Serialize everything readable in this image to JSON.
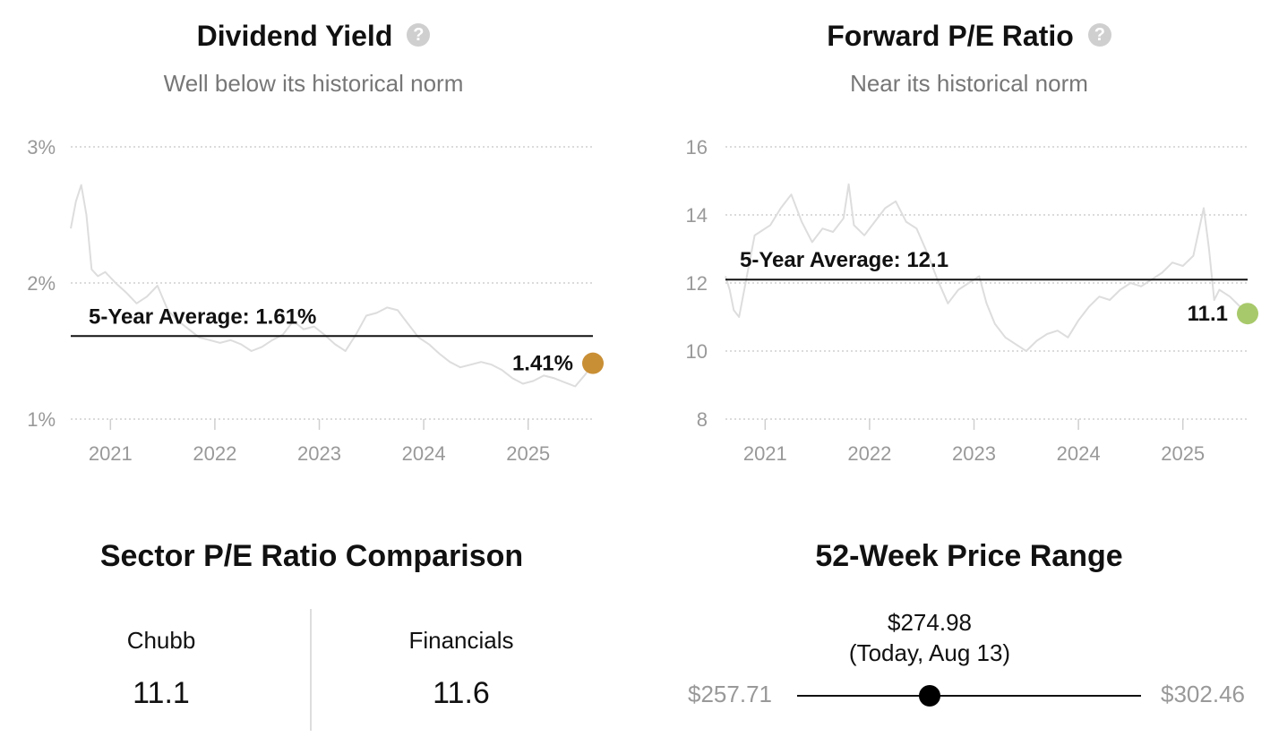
{
  "dividend_yield": {
    "title": "Dividend Yield",
    "subtitle": "Well below its historical norm",
    "help_icon": "question-circle-icon"
  },
  "forward_pe": {
    "title": "Forward P/E Ratio",
    "subtitle": "Near its historical norm",
    "help_icon": "question-circle-icon"
  },
  "chart_data": [
    {
      "id": "dividend_yield",
      "type": "line",
      "x_ticks": [
        "2021",
        "2022",
        "2023",
        "2024",
        "2025"
      ],
      "y_ticks": [
        "1%",
        "2%",
        "3%"
      ],
      "ylim": [
        1,
        3
      ],
      "xlim": [
        2020.62,
        2025.62
      ],
      "grid": "horizontal-dotted",
      "series_color": "#dddddd",
      "average": {
        "value": 1.61,
        "label": "5-Year Average: 1.61%"
      },
      "current": {
        "x": 2025.62,
        "value": 1.41,
        "label": "1.41%",
        "color": "#c98f35"
      },
      "series": [
        {
          "x": [
            2020.62,
            2020.67,
            2020.72,
            2020.77,
            2020.82,
            2020.88,
            2020.95,
            2021.05,
            2021.15,
            2021.25,
            2021.35,
            2021.45,
            2021.55,
            2021.65,
            2021.75,
            2021.85,
            2021.95,
            2022.05,
            2022.15,
            2022.25,
            2022.35,
            2022.45,
            2022.55,
            2022.65,
            2022.75,
            2022.85,
            2022.95,
            2023.05,
            2023.15,
            2023.25,
            2023.35,
            2023.45,
            2023.55,
            2023.65,
            2023.75,
            2023.85,
            2023.95,
            2024.05,
            2024.15,
            2024.25,
            2024.35,
            2024.45,
            2024.55,
            2024.65,
            2024.75,
            2024.85,
            2024.95,
            2025.05,
            2025.15,
            2025.25,
            2025.35,
            2025.45,
            2025.55,
            2025.62
          ],
          "y": [
            2.4,
            2.6,
            2.72,
            2.5,
            2.1,
            2.05,
            2.08,
            2.0,
            1.93,
            1.85,
            1.9,
            1.98,
            1.8,
            1.72,
            1.66,
            1.6,
            1.58,
            1.56,
            1.58,
            1.55,
            1.5,
            1.53,
            1.58,
            1.62,
            1.72,
            1.66,
            1.68,
            1.62,
            1.55,
            1.5,
            1.62,
            1.76,
            1.78,
            1.82,
            1.8,
            1.7,
            1.6,
            1.55,
            1.48,
            1.42,
            1.38,
            1.4,
            1.42,
            1.4,
            1.36,
            1.3,
            1.26,
            1.28,
            1.32,
            1.3,
            1.27,
            1.24,
            1.33,
            1.41
          ]
        }
      ]
    },
    {
      "id": "forward_pe",
      "type": "line",
      "x_ticks": [
        "2021",
        "2022",
        "2023",
        "2024",
        "2025"
      ],
      "y_ticks": [
        "8",
        "10",
        "12",
        "14",
        "16"
      ],
      "ylim": [
        8,
        16
      ],
      "xlim": [
        2020.62,
        2025.62
      ],
      "grid": "horizontal-dotted",
      "series_color": "#dddddd",
      "average": {
        "value": 12.1,
        "label": "5-Year Average: 12.1"
      },
      "current": {
        "x": 2025.62,
        "value": 11.1,
        "label": "11.1",
        "color": "#a8c96b"
      },
      "series": [
        {
          "x": [
            2020.62,
            2020.66,
            2020.7,
            2020.75,
            2020.8,
            2020.85,
            2020.9,
            2020.95,
            2021.05,
            2021.15,
            2021.25,
            2021.35,
            2021.45,
            2021.55,
            2021.65,
            2021.75,
            2021.8,
            2021.85,
            2021.95,
            2022.05,
            2022.15,
            2022.25,
            2022.35,
            2022.45,
            2022.55,
            2022.65,
            2022.75,
            2022.85,
            2022.95,
            2023.05,
            2023.12,
            2023.2,
            2023.3,
            2023.4,
            2023.5,
            2023.6,
            2023.7,
            2023.8,
            2023.9,
            2024.0,
            2024.1,
            2024.2,
            2024.3,
            2024.4,
            2024.5,
            2024.6,
            2024.7,
            2024.8,
            2024.9,
            2025.0,
            2025.1,
            2025.15,
            2025.2,
            2025.25,
            2025.3,
            2025.35,
            2025.45,
            2025.55,
            2025.62
          ],
          "y": [
            12.2,
            11.8,
            11.2,
            11.0,
            11.8,
            12.6,
            13.4,
            13.5,
            13.7,
            14.2,
            14.6,
            13.8,
            13.2,
            13.6,
            13.5,
            13.9,
            14.9,
            13.7,
            13.4,
            13.8,
            14.2,
            14.4,
            13.8,
            13.6,
            12.9,
            12.1,
            11.4,
            11.8,
            12.0,
            12.2,
            11.4,
            10.8,
            10.4,
            10.2,
            10.0,
            10.3,
            10.5,
            10.6,
            10.4,
            10.9,
            11.3,
            11.6,
            11.5,
            11.8,
            12.0,
            11.9,
            12.1,
            12.3,
            12.6,
            12.5,
            12.8,
            13.5,
            14.2,
            13.0,
            11.5,
            11.8,
            11.6,
            11.3,
            11.1
          ]
        }
      ]
    }
  ],
  "sector_pe": {
    "title": "Sector P/E Ratio Comparison",
    "left_label": "Chubb",
    "left_value": "11.1",
    "right_label": "Financials",
    "right_value": "11.6"
  },
  "price_range": {
    "title": "52-Week Price Range",
    "low": "$257.71",
    "high": "$302.46",
    "current_price": "$274.98",
    "current_note": "(Today, Aug 13)",
    "low_value": 257.71,
    "high_value": 302.46,
    "current_value": 274.98
  }
}
